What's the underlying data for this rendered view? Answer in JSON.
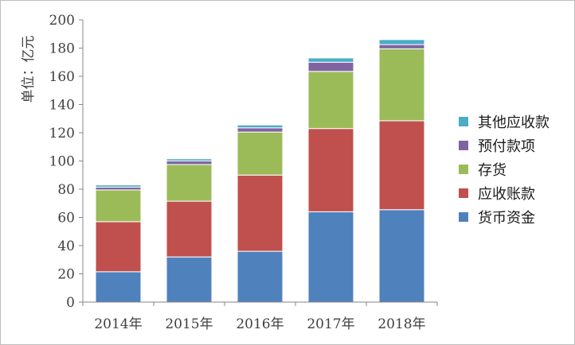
{
  "chart_data": {
    "type": "bar",
    "stacked": true,
    "categories": [
      "2014年",
      "2015年",
      "2016年",
      "2017年",
      "2018年"
    ],
    "series": [
      {
        "name": "货币资金",
        "color": "#4F81BD",
        "values": [
          21.5,
          32,
          36,
          64,
          65.5
        ]
      },
      {
        "name": "应收账款",
        "color": "#C0504D",
        "values": [
          35.5,
          39.5,
          54,
          59,
          63
        ]
      },
      {
        "name": "存货",
        "color": "#9BBB59",
        "values": [
          22.5,
          26,
          30.5,
          40.5,
          51
        ]
      },
      {
        "name": "预付款项",
        "color": "#8064A2",
        "values": [
          2,
          2.5,
          3,
          6.5,
          3
        ]
      },
      {
        "name": "其他应收款",
        "color": "#4BACC6",
        "values": [
          1.5,
          1.5,
          2,
          3,
          3.5
        ]
      }
    ],
    "ylim": [
      0,
      200
    ],
    "yticks": [
      0,
      20,
      40,
      60,
      80,
      100,
      120,
      140,
      160,
      180,
      200
    ],
    "ylabel": "单位：亿元",
    "xlabel": "",
    "title": "",
    "grid": false,
    "legend_position": "right"
  }
}
